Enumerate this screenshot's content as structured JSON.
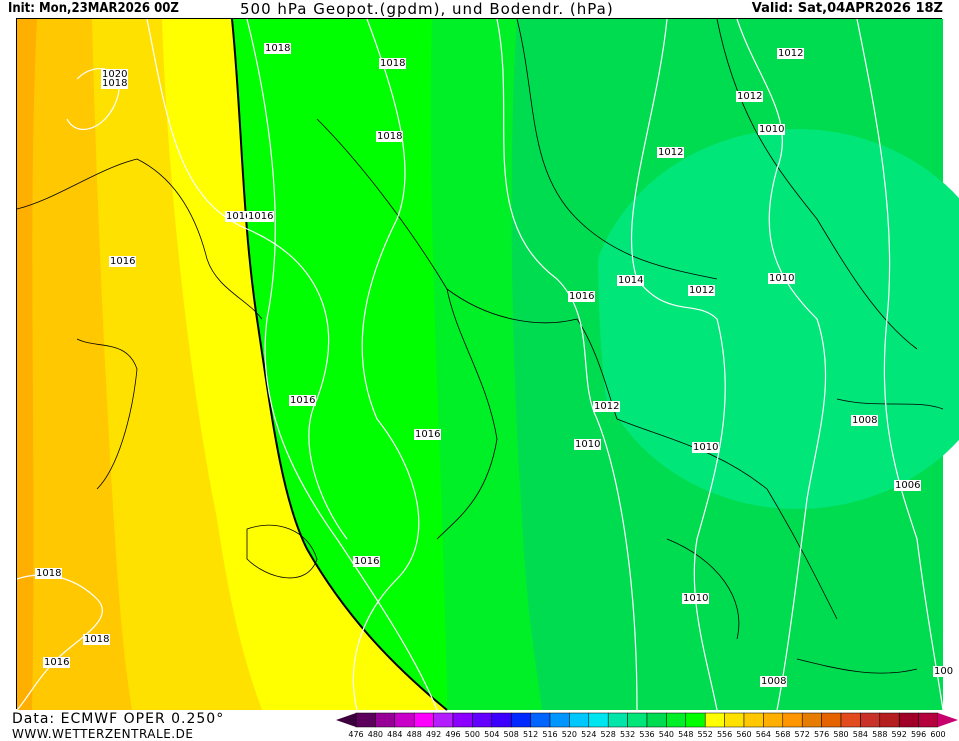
{
  "header": {
    "init": "Init: Mon,23MAR2026 00Z",
    "title": "500 hPa Geopot.(gpdm), und Bodendr. (hPa)",
    "valid": "Valid: Sat,04APR2026 18Z"
  },
  "footer": {
    "source": "Data: ECMWF OPER 0.250°",
    "website": "WWW.WETTERZENTRALE.DE"
  },
  "map": {
    "contour_labels": [
      "1018",
      "1018",
      "1020",
      "1018",
      "1018",
      "1016",
      "1016",
      "1016",
      "1016",
      "1016",
      "1016",
      "1014",
      "1012",
      "1012",
      "1010",
      "1012",
      "1012",
      "1010",
      "1012",
      "1010",
      "1010",
      "1008",
      "1006",
      "1016",
      "1018",
      "1018",
      "1016",
      "1010",
      "1008",
      "100"
    ],
    "band_colors": {
      "orange": "#ffaf00",
      "light_orange": "#ffc800",
      "gold": "#ffe100",
      "yellow": "#ffff00",
      "green": "#00ff00",
      "green2": "#00f028",
      "green3": "#00dc50",
      "teal": "#00e678"
    }
  },
  "colorbar": {
    "unit": "gpdm",
    "ticks": [
      "476",
      "480",
      "484",
      "488",
      "492",
      "496",
      "500",
      "504",
      "508",
      "512",
      "516",
      "520",
      "524",
      "528",
      "532",
      "536",
      "540",
      "548",
      "552",
      "556",
      "560",
      "564",
      "568",
      "572",
      "576",
      "580",
      "584",
      "588",
      "592",
      "596",
      "600"
    ],
    "colors": [
      "#5c005c",
      "#960096",
      "#c800c8",
      "#ff00ff",
      "#b41eff",
      "#8c00ff",
      "#6400ff",
      "#3c00ff",
      "#0028ff",
      "#0064ff",
      "#0096ff",
      "#00c8ff",
      "#00e6f0",
      "#00e6aa",
      "#00e678",
      "#00dc50",
      "#00f028",
      "#00ff00",
      "#ffff00",
      "#ffe100",
      "#ffc800",
      "#ffaf00",
      "#ff9600",
      "#e67d00",
      "#e66400",
      "#e14b1e",
      "#c83228",
      "#b41e1e",
      "#a00028",
      "#b4003c"
    ],
    "low_arrow": "#3c003c",
    "high_arrow": "#c8006e"
  }
}
